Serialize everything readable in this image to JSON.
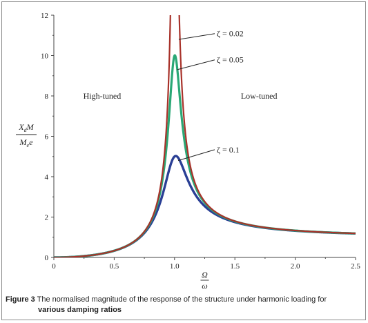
{
  "chart_data": {
    "type": "line",
    "title": "",
    "x_tick_labels": [
      "0",
      "0.5",
      "1.0",
      "1.5",
      "2.0",
      "2.5"
    ],
    "y_tick_labels": [
      "0",
      "2",
      "4",
      "6",
      "8",
      "10",
      "12"
    ],
    "xlim": [
      0,
      2.5
    ],
    "ylim": [
      0,
      12
    ],
    "grid": false,
    "x_label": {
      "numerator": "Ω",
      "denominator": "ω"
    },
    "y_label": {
      "numerator": "X_d M",
      "denominator": "M_e e"
    },
    "regions": [
      {
        "text": "High-tuned",
        "x": 0.4,
        "y": 8
      },
      {
        "text": "Low-tuned",
        "x": 1.7,
        "y": 8
      }
    ],
    "series": [
      {
        "name": "ζ = 0.02",
        "zeta": 0.02,
        "color": "#a8322a",
        "linewidth": 2.2
      },
      {
        "name": "ζ = 0.05",
        "zeta": 0.05,
        "color": "#2aa876",
        "linewidth": 3.2
      },
      {
        "name": "ζ = 0.1",
        "zeta": 0.1,
        "color": "#2a3f95",
        "linewidth": 3.4
      }
    ],
    "annotations": [
      {
        "series_index": 0,
        "text": "ζ = 0.02",
        "point": [
          1.035,
          10.8
        ],
        "label_pos": [
          1.35,
          10.95
        ]
      },
      {
        "series_index": 1,
        "text": "ζ = 0.05",
        "point": [
          1.02,
          9.3
        ],
        "label_pos": [
          1.35,
          9.65
        ]
      },
      {
        "series_index": 2,
        "text": "ζ = 0.1",
        "point": [
          1.03,
          4.8
        ],
        "label_pos": [
          1.35,
          5.2
        ]
      }
    ]
  },
  "caption": {
    "label": "Figure 3",
    "line1": " The normalised magnitude of the response of the structure under harmonic loading for",
    "line2": "various damping ratios"
  }
}
